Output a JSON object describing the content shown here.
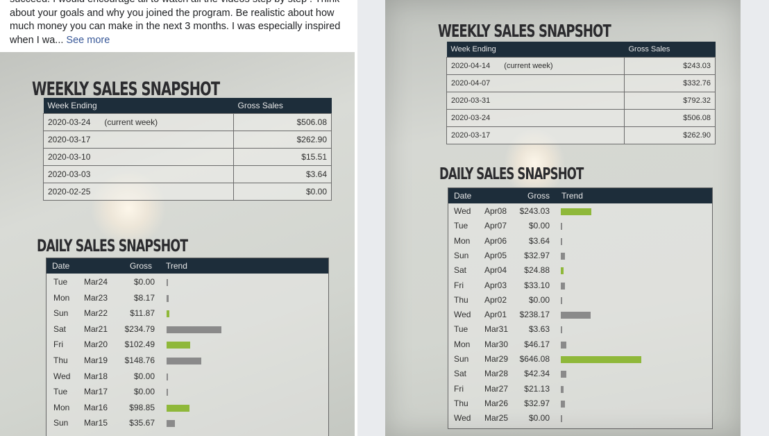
{
  "post": {
    "line0": "succeed. I would encourage all to watch all the videos step by step . Think",
    "line1": "about your goals and why you joined the program. Be realistic about how",
    "line2": "much money you can make in the next 3 months. I was especially inspired",
    "line3": "when I wa...",
    "see_more": "See more"
  },
  "left_photo": {
    "weekly_title": "WEEKLY SALES SNAPSHOT",
    "weekly_headers": [
      "Week Ending",
      "Gross Sales"
    ],
    "weekly_rows": [
      {
        "week": "2020-03-24",
        "note": "(current week)",
        "gross": "$506.08"
      },
      {
        "week": "2020-03-17",
        "note": "",
        "gross": "$262.90"
      },
      {
        "week": "2020-03-10",
        "note": "",
        "gross": "$15.51"
      },
      {
        "week": "2020-03-03",
        "note": "",
        "gross": "$3.64"
      },
      {
        "week": "2020-02-25",
        "note": "",
        "gross": "$0.00"
      }
    ],
    "daily_title": "DAILY SALES SNAPSHOT",
    "daily_headers": [
      "Date",
      "Gross",
      "Trend"
    ],
    "daily_rows": [
      {
        "day": "Tue",
        "date": "Mar24",
        "gross": "$0.00",
        "value": 0,
        "color": "#8a8a8a"
      },
      {
        "day": "Mon",
        "date": "Mar23",
        "gross": "$8.17",
        "value": 8.17,
        "color": "#8a8a8a"
      },
      {
        "day": "Sun",
        "date": "Mar22",
        "gross": "$11.87",
        "value": 11.87,
        "color": "#8fb83a"
      },
      {
        "day": "Sat",
        "date": "Mar21",
        "gross": "$234.79",
        "value": 234.79,
        "color": "#8a8a8a"
      },
      {
        "day": "Fri",
        "date": "Mar20",
        "gross": "$102.49",
        "value": 102.49,
        "color": "#8fb83a"
      },
      {
        "day": "Thu",
        "date": "Mar19",
        "gross": "$148.76",
        "value": 148.76,
        "color": "#8a8a8a"
      },
      {
        "day": "Wed",
        "date": "Mar18",
        "gross": "$0.00",
        "value": 0,
        "color": "#8a8a8a"
      },
      {
        "day": "Tue",
        "date": "Mar17",
        "gross": "$0.00",
        "value": 0,
        "color": "#8a8a8a"
      },
      {
        "day": "Mon",
        "date": "Mar16",
        "gross": "$98.85",
        "value": 98.85,
        "color": "#8fb83a"
      },
      {
        "day": "Sun",
        "date": "Mar15",
        "gross": "$35.67",
        "value": 35.67,
        "color": "#8a8a8a"
      }
    ]
  },
  "right_photo": {
    "weekly_title": "WEEKLY SALES SNAPSHOT",
    "weekly_headers": [
      "Week Ending",
      "Gross Sales"
    ],
    "weekly_rows": [
      {
        "week": "2020-04-14",
        "note": "(current week)",
        "gross": "$243.03"
      },
      {
        "week": "2020-04-07",
        "note": "",
        "gross": "$332.76"
      },
      {
        "week": "2020-03-31",
        "note": "",
        "gross": "$792.32"
      },
      {
        "week": "2020-03-24",
        "note": "",
        "gross": "$506.08"
      },
      {
        "week": "2020-03-17",
        "note": "",
        "gross": "$262.90"
      }
    ],
    "daily_title": "DAILY SALES SNAPSHOT",
    "daily_headers": [
      "Date",
      "Gross",
      "Trend"
    ],
    "daily_rows": [
      {
        "day": "Wed",
        "date": "Apr08",
        "gross": "$243.03",
        "value": 243.03,
        "color": "#8fb83a"
      },
      {
        "day": "Tue",
        "date": "Apr07",
        "gross": "$0.00",
        "value": 0,
        "color": "#8a8a8a"
      },
      {
        "day": "Mon",
        "date": "Apr06",
        "gross": "$3.64",
        "value": 3.64,
        "color": "#8a8a8a"
      },
      {
        "day": "Sun",
        "date": "Apr05",
        "gross": "$32.97",
        "value": 32.97,
        "color": "#8a8a8a"
      },
      {
        "day": "Sat",
        "date": "Apr04",
        "gross": "$24.88",
        "value": 24.88,
        "color": "#8fb83a"
      },
      {
        "day": "Fri",
        "date": "Apr03",
        "gross": "$33.10",
        "value": 33.1,
        "color": "#8a8a8a"
      },
      {
        "day": "Thu",
        "date": "Apr02",
        "gross": "$0.00",
        "value": 0,
        "color": "#8a8a8a"
      },
      {
        "day": "Wed",
        "date": "Apr01",
        "gross": "$238.17",
        "value": 238.17,
        "color": "#8a8a8a"
      },
      {
        "day": "Tue",
        "date": "Mar31",
        "gross": "$3.63",
        "value": 3.63,
        "color": "#8a8a8a"
      },
      {
        "day": "Mon",
        "date": "Mar30",
        "gross": "$46.17",
        "value": 46.17,
        "color": "#8a8a8a"
      },
      {
        "day": "Sun",
        "date": "Mar29",
        "gross": "$646.08",
        "value": 646.08,
        "color": "#8fb83a"
      },
      {
        "day": "Sat",
        "date": "Mar28",
        "gross": "$42.34",
        "value": 42.34,
        "color": "#8a8a8a"
      },
      {
        "day": "Fri",
        "date": "Mar27",
        "gross": "$21.13",
        "value": 21.13,
        "color": "#8a8a8a"
      },
      {
        "day": "Thu",
        "date": "Mar26",
        "gross": "$32.97",
        "value": 32.97,
        "color": "#8a8a8a"
      },
      {
        "day": "Wed",
        "date": "Mar25",
        "gross": "$0.00",
        "value": 0,
        "color": "#8a8a8a"
      }
    ]
  }
}
